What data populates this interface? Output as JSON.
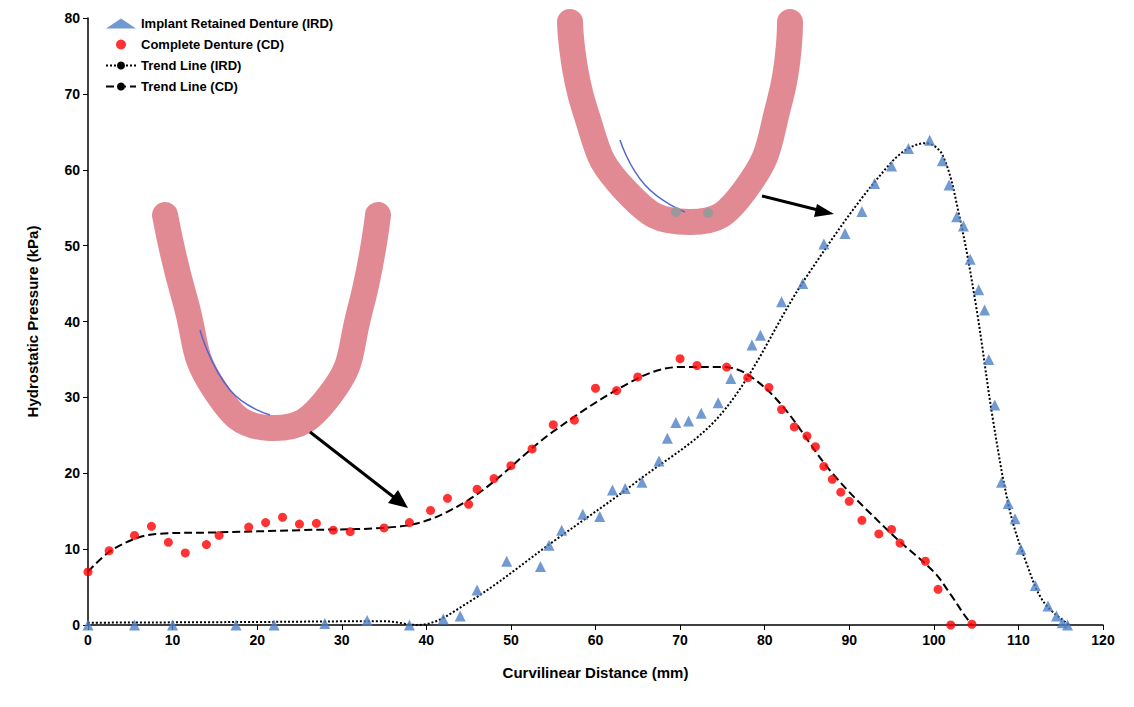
{
  "chart_data": {
    "type": "scatter",
    "x_label": "Curvilinear Distance (mm)",
    "y_label": "Hydrostatic Pressure (kPa)",
    "xlim": [
      0,
      120
    ],
    "xticks": [
      0,
      10,
      20,
      30,
      40,
      50,
      60,
      70,
      80,
      90,
      100,
      110,
      120
    ],
    "ylim": [
      0,
      80
    ],
    "yticks": [
      0,
      10,
      20,
      30,
      40,
      50,
      60,
      70,
      80
    ],
    "grid": false,
    "legend": "upper left",
    "series": [
      {
        "name": "Implant Retained Denture (IRD)",
        "type": "scatter",
        "marker": "triangle",
        "color": "#4f81c7",
        "x": [
          0,
          5.5,
          10,
          17.5,
          22,
          28,
          33,
          38,
          42,
          44,
          46,
          49.5,
          53.5,
          54.5,
          56,
          58.5,
          60.5,
          62,
          63.5,
          65.5,
          67.5,
          68.5,
          69.5,
          71,
          72.5,
          74.5,
          76,
          78.5,
          79.5,
          82,
          84.5,
          87,
          89.5,
          91.5,
          93,
          95,
          97,
          99.5,
          101,
          101.8,
          102.7,
          103.5,
          104.3,
          105.3,
          106,
          106.5,
          107.2,
          108,
          108.8,
          109.6,
          110.3,
          112,
          113.5,
          114.5,
          115.2,
          115.8
        ],
        "values": [
          0,
          0,
          0,
          0,
          0,
          0.2,
          0.6,
          0,
          0.8,
          1.2,
          4.6,
          8.4,
          7.7,
          10.5,
          12.5,
          14.6,
          14.3,
          17.8,
          18,
          18.8,
          21.6,
          24.6,
          26.7,
          26.9,
          27.9,
          29.3,
          32.5,
          36.9,
          38.2,
          42.6,
          45,
          50.2,
          51.6,
          54.5,
          58.2,
          60.5,
          62.8,
          63.9,
          61.2,
          58,
          53.8,
          52.6,
          48.2,
          44.2,
          41.5,
          35,
          29,
          18.8,
          16,
          14,
          10,
          5.2,
          2.5,
          1.2,
          0.3,
          0
        ]
      },
      {
        "name": "Complete Denture (CD)",
        "type": "scatter",
        "marker": "circle",
        "color": "#ff0000",
        "x": [
          0,
          2.5,
          5.5,
          7.5,
          9.5,
          11.5,
          14,
          15.5,
          19,
          21,
          23,
          25,
          27,
          29,
          31,
          35,
          38,
          40.5,
          42.5,
          45,
          46,
          48,
          50,
          52.5,
          55,
          57.5,
          60,
          62.5,
          65,
          70,
          72,
          75.5,
          78,
          80.5,
          82,
          83.5,
          85,
          86,
          87,
          88,
          89,
          90,
          91.5,
          93.5,
          95,
          96,
          99,
          100.5,
          102,
          104.5
        ],
        "values": [
          7,
          9.8,
          11.8,
          13,
          10.9,
          9.5,
          10.6,
          11.8,
          12.9,
          13.5,
          14.2,
          13.3,
          13.4,
          12.5,
          12.3,
          12.8,
          13.5,
          15.1,
          16.7,
          15.9,
          17.9,
          19.3,
          21,
          23.2,
          26.4,
          27,
          31.2,
          30.9,
          32.7,
          35.1,
          34.2,
          34,
          32.6,
          31.3,
          28.4,
          26.1,
          24.9,
          23.5,
          20.9,
          19.2,
          17.5,
          16.3,
          13.8,
          12,
          12.6,
          10.8,
          8.4,
          4.7,
          0,
          0.1
        ]
      },
      {
        "name": "Trend Line (IRD)",
        "type": "line",
        "line_style": "dotted",
        "color": "#000000",
        "x": [
          0,
          20,
          35,
          39,
          45,
          55,
          65,
          75,
          85,
          95,
          99,
          101,
          103,
          105,
          107,
          109,
          111,
          113,
          116
        ],
        "values": [
          0.3,
          0.4,
          0.5,
          0,
          3,
          11,
          19,
          28,
          46,
          61,
          63.5,
          62,
          54,
          42,
          27,
          15,
          8,
          3,
          0
        ]
      },
      {
        "name": "Trend Line (CD)",
        "type": "line",
        "line_style": "dashed",
        "color": "#000000",
        "x": [
          0,
          3,
          8,
          15,
          25,
          37,
          45,
          55,
          65,
          70,
          75,
          78,
          82,
          88,
          95,
          100,
          102,
          103.5,
          104.5
        ],
        "values": [
          7,
          10,
          12,
          12.2,
          12.5,
          13,
          16.5,
          25.5,
          32.5,
          34,
          34,
          33,
          29,
          20,
          12,
          7,
          4,
          1.5,
          0
        ]
      }
    ]
  }
}
